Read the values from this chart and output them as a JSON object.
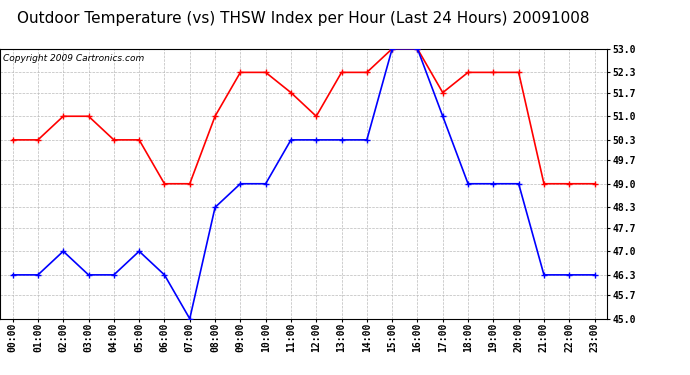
{
  "title": "Outdoor Temperature (vs) THSW Index per Hour (Last 24 Hours) 20091008",
  "copyright": "Copyright 2009 Cartronics.com",
  "hours": [
    "00:00",
    "01:00",
    "02:00",
    "03:00",
    "04:00",
    "05:00",
    "06:00",
    "07:00",
    "08:00",
    "09:00",
    "10:00",
    "11:00",
    "12:00",
    "13:00",
    "14:00",
    "15:00",
    "16:00",
    "17:00",
    "18:00",
    "19:00",
    "20:00",
    "21:00",
    "22:00",
    "23:00"
  ],
  "red_data": [
    50.3,
    50.3,
    51.0,
    51.0,
    50.3,
    50.3,
    49.0,
    49.0,
    51.0,
    52.3,
    52.3,
    51.7,
    51.0,
    52.3,
    52.3,
    53.0,
    53.0,
    51.7,
    52.3,
    52.3,
    52.3,
    49.0,
    49.0,
    49.0
  ],
  "blue_data": [
    46.3,
    46.3,
    47.0,
    46.3,
    46.3,
    47.0,
    46.3,
    45.0,
    48.3,
    49.0,
    49.0,
    50.3,
    50.3,
    50.3,
    50.3,
    53.0,
    53.0,
    51.0,
    49.0,
    49.0,
    49.0,
    46.3,
    46.3,
    46.3
  ],
  "red_color": "#ff0000",
  "blue_color": "#0000ff",
  "bg_color": "#ffffff",
  "grid_color": "#bbbbbb",
  "ymin": 45.0,
  "ymax": 53.0,
  "yticks": [
    45.0,
    45.7,
    46.3,
    47.0,
    47.7,
    48.3,
    49.0,
    49.7,
    50.3,
    51.0,
    51.7,
    52.3,
    53.0
  ],
  "title_fontsize": 11,
  "copyright_fontsize": 6.5,
  "tick_fontsize": 7,
  "marker_size": 4,
  "line_width": 1.2
}
